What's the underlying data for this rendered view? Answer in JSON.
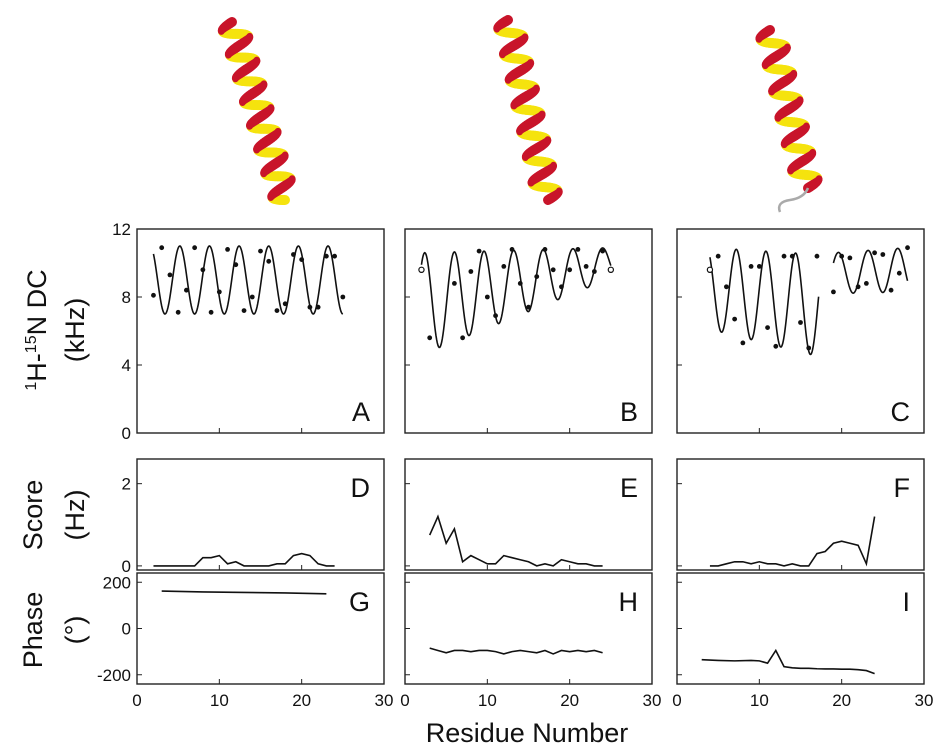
{
  "figure": {
    "y_label_dc_parts": [
      "1",
      "H-",
      "15",
      "N DC"
    ],
    "y_label_dc_unit": "(kHz)",
    "y_label_score": "Score",
    "y_label_score_unit": "(Hz)",
    "y_label_phase": "Phase",
    "y_label_phase_unit": "(°)",
    "x_label": "Residue Number"
  },
  "chart_data": [
    {
      "type": "line",
      "panel": "A",
      "letter": "A",
      "row": "dc",
      "column": 0,
      "xlim": [
        0,
        30
      ],
      "ylim": [
        0,
        12
      ],
      "yticks": [
        0,
        4,
        8,
        12
      ],
      "wave": {
        "start": 2,
        "end": 25,
        "mean": 9.0,
        "amplitude": 2.0,
        "period": 3.6,
        "phase_deg": 200
      },
      "points": [
        [
          2,
          8.1
        ],
        [
          3,
          10.9
        ],
        [
          4,
          9.3
        ],
        [
          5,
          7.1
        ],
        [
          6,
          8.4
        ],
        [
          7,
          10.9
        ],
        [
          8,
          9.6
        ],
        [
          9,
          7.1
        ],
        [
          10,
          8.3
        ],
        [
          11,
          10.8
        ],
        [
          12,
          9.9
        ],
        [
          13,
          7.2
        ],
        [
          14,
          8.0
        ],
        [
          15,
          10.7
        ],
        [
          16,
          10.1
        ],
        [
          17,
          7.2
        ],
        [
          18,
          7.6
        ],
        [
          19,
          10.5
        ],
        [
          20,
          10.2
        ],
        [
          21,
          7.4
        ],
        [
          22,
          7.4
        ],
        [
          23,
          10.4
        ],
        [
          24,
          10.4
        ],
        [
          25,
          8.0
        ]
      ],
      "open_points": []
    },
    {
      "type": "line",
      "panel": "B",
      "letter": "B",
      "row": "dc",
      "column": 1,
      "xlim": [
        0,
        30
      ],
      "ylim": [
        0,
        12
      ],
      "yticks": [
        0,
        4,
        8,
        12
      ],
      "segments": [
        {
          "start": 2,
          "end": 25,
          "mean_start": 7.6,
          "mean_end": 10.0,
          "amp_start": 3.0,
          "amp_end": 0.9,
          "period": 3.6,
          "phase_deg": 120
        }
      ],
      "points": [
        [
          3,
          5.6
        ],
        [
          6,
          8.8
        ],
        [
          7,
          5.6
        ],
        [
          8,
          9.5
        ],
        [
          9,
          10.7
        ],
        [
          10,
          8.0
        ],
        [
          11,
          6.9
        ],
        [
          12,
          9.8
        ],
        [
          13,
          10.8
        ],
        [
          14,
          8.8
        ],
        [
          15,
          7.4
        ],
        [
          16,
          9.2
        ],
        [
          17,
          10.8
        ],
        [
          18,
          9.6
        ],
        [
          19,
          8.6
        ],
        [
          20,
          9.6
        ],
        [
          21,
          10.8
        ],
        [
          22,
          9.8
        ],
        [
          23,
          9.5
        ],
        [
          24,
          10.7
        ]
      ],
      "open_points": [
        [
          2,
          9.6
        ],
        [
          25,
          9.6
        ]
      ]
    },
    {
      "type": "line",
      "panel": "C",
      "letter": "C",
      "row": "dc",
      "column": 2,
      "xlim": [
        0,
        30
      ],
      "ylim": [
        0,
        12
      ],
      "yticks": [
        0,
        4,
        8,
        12
      ],
      "segments": [
        {
          "start": 4,
          "end": 17.2,
          "mean_start": 8.5,
          "mean_end": 7.5,
          "amp_start": 2.4,
          "amp_end": 3.0,
          "period": 3.6,
          "phase_deg": 0
        },
        {
          "start": 19,
          "end": 28,
          "mean_start": 9.4,
          "mean_end": 9.6,
          "amp_start": 1.2,
          "amp_end": 1.3,
          "period": 3.6,
          "phase_deg": 200
        }
      ],
      "points": [
        [
          5,
          10.4
        ],
        [
          6,
          8.6
        ],
        [
          7,
          6.7
        ],
        [
          8,
          5.3
        ],
        [
          9,
          9.8
        ],
        [
          10,
          9.8
        ],
        [
          11,
          6.2
        ],
        [
          12,
          5.1
        ],
        [
          13,
          10.4
        ],
        [
          14,
          10.4
        ],
        [
          15,
          6.5
        ],
        [
          16,
          5.0
        ],
        [
          17,
          10.4
        ],
        [
          19,
          8.3
        ],
        [
          20,
          10.4
        ],
        [
          21,
          10.3
        ],
        [
          22,
          8.6
        ],
        [
          23,
          8.8
        ],
        [
          24,
          10.6
        ],
        [
          25,
          10.5
        ],
        [
          26,
          8.4
        ],
        [
          27,
          9.4
        ],
        [
          28,
          10.9
        ]
      ],
      "open_points": [
        [
          4,
          9.6
        ]
      ]
    },
    {
      "type": "line",
      "panel": "D",
      "letter": "D",
      "row": "score",
      "column": 0,
      "xlim": [
        0,
        30
      ],
      "ylim": [
        -0.1,
        2.6
      ],
      "yticks": [
        0,
        2
      ],
      "x": [
        2,
        3,
        4,
        5,
        6,
        7,
        8,
        9,
        10,
        11,
        12,
        13,
        14,
        15,
        16,
        17,
        18,
        19,
        20,
        21,
        22,
        23,
        24
      ],
      "y": [
        0.0,
        0.0,
        0.0,
        0.0,
        0.0,
        0.0,
        0.2,
        0.2,
        0.25,
        0.05,
        0.1,
        0.0,
        0.0,
        0.0,
        0.0,
        0.05,
        0.05,
        0.25,
        0.3,
        0.25,
        0.05,
        0.0,
        0.0
      ]
    },
    {
      "type": "line",
      "panel": "E",
      "letter": "E",
      "row": "score",
      "column": 1,
      "xlim": [
        0,
        30
      ],
      "ylim": [
        -0.1,
        2.6
      ],
      "yticks": [
        0,
        2
      ],
      "x": [
        3,
        4,
        5,
        6,
        7,
        8,
        9,
        10,
        11,
        12,
        13,
        14,
        15,
        16,
        17,
        18,
        19,
        20,
        21,
        22,
        23,
        24
      ],
      "y": [
        0.75,
        1.2,
        0.55,
        0.9,
        0.1,
        0.25,
        0.15,
        0.05,
        0.05,
        0.25,
        0.2,
        0.15,
        0.1,
        0.0,
        0.05,
        0.0,
        0.15,
        0.1,
        0.05,
        0.05,
        0.0,
        0.0
      ]
    },
    {
      "type": "line",
      "panel": "F",
      "letter": "F",
      "row": "score",
      "column": 2,
      "xlim": [
        0,
        30
      ],
      "ylim": [
        -0.1,
        2.6
      ],
      "yticks": [
        0,
        2
      ],
      "x": [
        4,
        5,
        6,
        7,
        8,
        9,
        10,
        11,
        12,
        13,
        14,
        15,
        16,
        17,
        18,
        19,
        20,
        21,
        22,
        23,
        24
      ],
      "y": [
        0.0,
        0.0,
        0.05,
        0.1,
        0.1,
        0.05,
        0.1,
        0.05,
        0.05,
        0.0,
        0.05,
        0.0,
        0.0,
        0.3,
        0.35,
        0.55,
        0.6,
        0.55,
        0.5,
        0.05,
        1.2
      ]
    },
    {
      "type": "line",
      "panel": "G",
      "letter": "G",
      "row": "phase",
      "column": 0,
      "xlim": [
        0,
        30
      ],
      "ylim": [
        -240,
        240
      ],
      "yticks": [
        -200,
        0,
        200
      ],
      "x": [
        3,
        8,
        13,
        18,
        23
      ],
      "y": [
        162,
        158,
        156,
        154,
        150
      ]
    },
    {
      "type": "line",
      "panel": "H",
      "letter": "H",
      "row": "phase",
      "column": 1,
      "xlim": [
        0,
        30
      ],
      "ylim": [
        -240,
        240
      ],
      "yticks": [
        -200,
        0,
        200
      ],
      "x": [
        3,
        4,
        5,
        6,
        7,
        8,
        9,
        10,
        11,
        12,
        13,
        14,
        15,
        16,
        17,
        18,
        19,
        20,
        21,
        22,
        23,
        24
      ],
      "y": [
        -85,
        -95,
        -105,
        -95,
        -95,
        -100,
        -95,
        -95,
        -100,
        -110,
        -100,
        -95,
        -100,
        -105,
        -95,
        -110,
        -95,
        -100,
        -95,
        -100,
        -95,
        -105
      ]
    },
    {
      "type": "line",
      "panel": "I",
      "letter": "I",
      "row": "phase",
      "column": 2,
      "xlim": [
        0,
        30
      ],
      "ylim": [
        -240,
        240
      ],
      "yticks": [
        -200,
        0,
        200
      ],
      "x": [
        3,
        5,
        7,
        9,
        10,
        11,
        12,
        13,
        14,
        15,
        16,
        17,
        18,
        19,
        20,
        21,
        22,
        23,
        24
      ],
      "y": [
        -135,
        -138,
        -140,
        -138,
        -140,
        -150,
        -95,
        -165,
        -170,
        -172,
        -172,
        -174,
        -175,
        -175,
        -176,
        -176,
        -178,
        -182,
        -195
      ]
    }
  ],
  "colors": {
    "helix_red": "#c8142a",
    "helix_yellow": "#f5e30e",
    "helix_shadow": "#8a0a16",
    "tail_gray": "#aaaaaa",
    "axis": "#222222"
  }
}
